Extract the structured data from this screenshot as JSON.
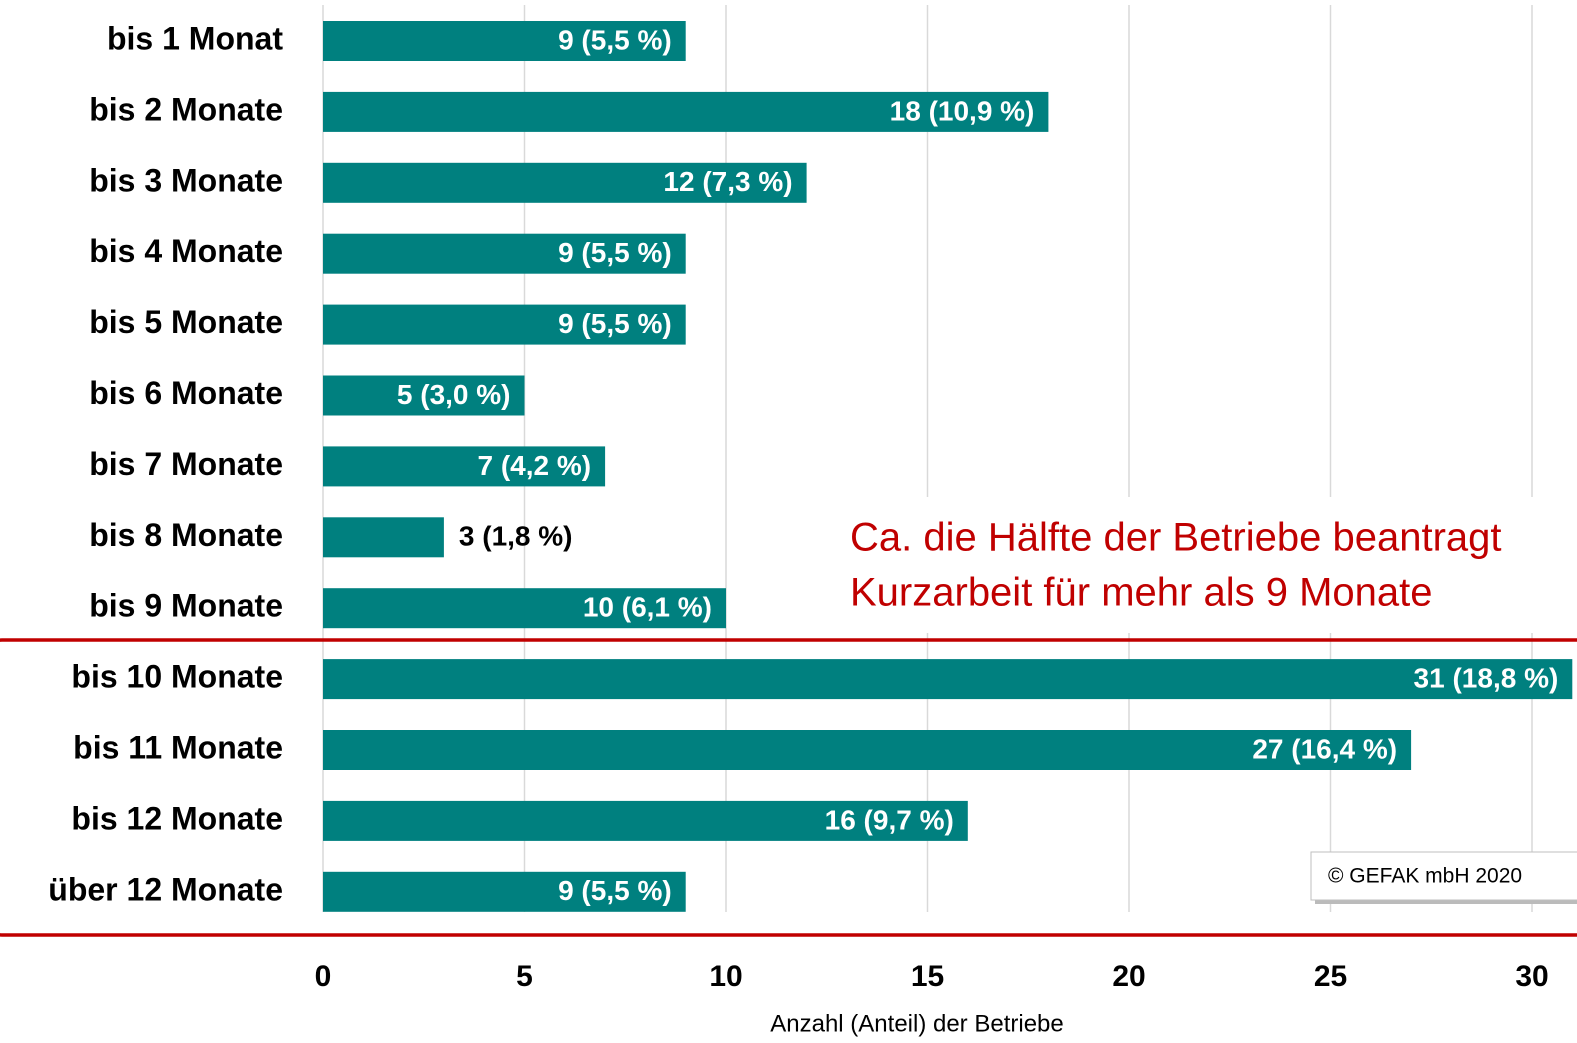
{
  "chart_data": {
    "type": "barh",
    "x_label": "Anzahl (Anteil) der Betriebe",
    "categories": [
      "bis 1 Monat",
      "bis 2 Monate",
      "bis 3 Monate",
      "bis 4 Monate",
      "bis 5 Monate",
      "bis 6 Monate",
      "bis 7 Monate",
      "bis 8 Monate",
      "bis 9 Monate",
      "bis 10 Monate",
      "bis 11 Monate",
      "bis 12 Monate",
      "über 12 Monate"
    ],
    "values": [
      9,
      18,
      12,
      9,
      9,
      5,
      7,
      3,
      10,
      31,
      27,
      16,
      9
    ],
    "value_labels": [
      "9 (5,5 %)",
      "18 (10,9 %)",
      "12 (7,3 %)",
      "9 (5,5 %)",
      "9 (5,5 %)",
      "5 (3,0 %)",
      "7 (4,2 %)",
      "3 (1,8 %)",
      "10 (6,1 %)",
      "31 (18,8 %)",
      "27 (16,4 %)",
      "16 (9,7 %)",
      "9 (5,5 %)"
    ],
    "color": "#00807f",
    "xlim": [
      0,
      30
    ],
    "xticks": [
      0,
      5,
      10,
      15,
      20,
      25,
      30
    ],
    "grid": true,
    "annotation": [
      "Ca. die Hälfte der Betriebe beantragt",
      "Kurzarbeit für mehr als 9 Monate"
    ],
    "copyright": "© GEFAK mbH 2020"
  }
}
